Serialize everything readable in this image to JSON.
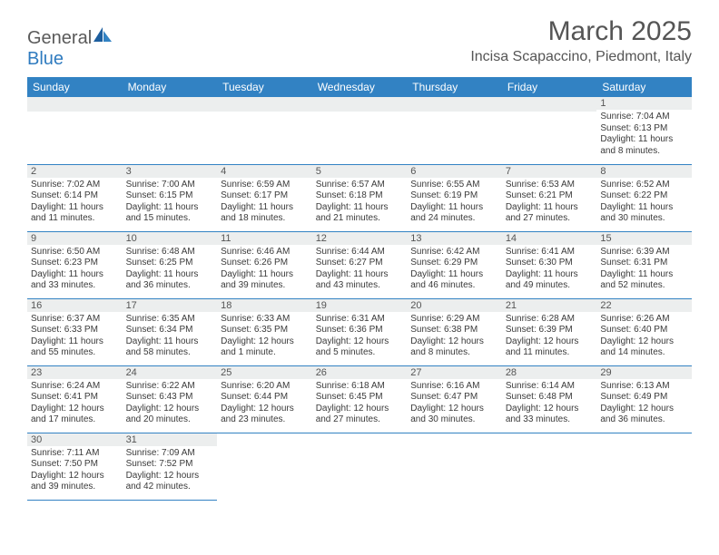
{
  "logo": {
    "text_general": "General",
    "text_blue": "Blue"
  },
  "title": "March 2025",
  "location": "Incisa Scapaccino, Piedmont, Italy",
  "day_headers": [
    "Sunday",
    "Monday",
    "Tuesday",
    "Wednesday",
    "Thursday",
    "Friday",
    "Saturday"
  ],
  "colors": {
    "header_bg": "#3282c3",
    "header_fg": "#ffffff",
    "daynum_bg": "#eceeee",
    "border": "#3282c3",
    "text": "#3a3a3a",
    "title": "#555555"
  },
  "weeks": [
    [
      null,
      null,
      null,
      null,
      null,
      null,
      {
        "n": "1",
        "sr": "Sunrise: 7:04 AM",
        "ss": "Sunset: 6:13 PM",
        "dl1": "Daylight: 11 hours",
        "dl2": "and 8 minutes."
      }
    ],
    [
      {
        "n": "2",
        "sr": "Sunrise: 7:02 AM",
        "ss": "Sunset: 6:14 PM",
        "dl1": "Daylight: 11 hours",
        "dl2": "and 11 minutes."
      },
      {
        "n": "3",
        "sr": "Sunrise: 7:00 AM",
        "ss": "Sunset: 6:15 PM",
        "dl1": "Daylight: 11 hours",
        "dl2": "and 15 minutes."
      },
      {
        "n": "4",
        "sr": "Sunrise: 6:59 AM",
        "ss": "Sunset: 6:17 PM",
        "dl1": "Daylight: 11 hours",
        "dl2": "and 18 minutes."
      },
      {
        "n": "5",
        "sr": "Sunrise: 6:57 AM",
        "ss": "Sunset: 6:18 PM",
        "dl1": "Daylight: 11 hours",
        "dl2": "and 21 minutes."
      },
      {
        "n": "6",
        "sr": "Sunrise: 6:55 AM",
        "ss": "Sunset: 6:19 PM",
        "dl1": "Daylight: 11 hours",
        "dl2": "and 24 minutes."
      },
      {
        "n": "7",
        "sr": "Sunrise: 6:53 AM",
        "ss": "Sunset: 6:21 PM",
        "dl1": "Daylight: 11 hours",
        "dl2": "and 27 minutes."
      },
      {
        "n": "8",
        "sr": "Sunrise: 6:52 AM",
        "ss": "Sunset: 6:22 PM",
        "dl1": "Daylight: 11 hours",
        "dl2": "and 30 minutes."
      }
    ],
    [
      {
        "n": "9",
        "sr": "Sunrise: 6:50 AM",
        "ss": "Sunset: 6:23 PM",
        "dl1": "Daylight: 11 hours",
        "dl2": "and 33 minutes."
      },
      {
        "n": "10",
        "sr": "Sunrise: 6:48 AM",
        "ss": "Sunset: 6:25 PM",
        "dl1": "Daylight: 11 hours",
        "dl2": "and 36 minutes."
      },
      {
        "n": "11",
        "sr": "Sunrise: 6:46 AM",
        "ss": "Sunset: 6:26 PM",
        "dl1": "Daylight: 11 hours",
        "dl2": "and 39 minutes."
      },
      {
        "n": "12",
        "sr": "Sunrise: 6:44 AM",
        "ss": "Sunset: 6:27 PM",
        "dl1": "Daylight: 11 hours",
        "dl2": "and 43 minutes."
      },
      {
        "n": "13",
        "sr": "Sunrise: 6:42 AM",
        "ss": "Sunset: 6:29 PM",
        "dl1": "Daylight: 11 hours",
        "dl2": "and 46 minutes."
      },
      {
        "n": "14",
        "sr": "Sunrise: 6:41 AM",
        "ss": "Sunset: 6:30 PM",
        "dl1": "Daylight: 11 hours",
        "dl2": "and 49 minutes."
      },
      {
        "n": "15",
        "sr": "Sunrise: 6:39 AM",
        "ss": "Sunset: 6:31 PM",
        "dl1": "Daylight: 11 hours",
        "dl2": "and 52 minutes."
      }
    ],
    [
      {
        "n": "16",
        "sr": "Sunrise: 6:37 AM",
        "ss": "Sunset: 6:33 PM",
        "dl1": "Daylight: 11 hours",
        "dl2": "and 55 minutes."
      },
      {
        "n": "17",
        "sr": "Sunrise: 6:35 AM",
        "ss": "Sunset: 6:34 PM",
        "dl1": "Daylight: 11 hours",
        "dl2": "and 58 minutes."
      },
      {
        "n": "18",
        "sr": "Sunrise: 6:33 AM",
        "ss": "Sunset: 6:35 PM",
        "dl1": "Daylight: 12 hours",
        "dl2": "and 1 minute."
      },
      {
        "n": "19",
        "sr": "Sunrise: 6:31 AM",
        "ss": "Sunset: 6:36 PM",
        "dl1": "Daylight: 12 hours",
        "dl2": "and 5 minutes."
      },
      {
        "n": "20",
        "sr": "Sunrise: 6:29 AM",
        "ss": "Sunset: 6:38 PM",
        "dl1": "Daylight: 12 hours",
        "dl2": "and 8 minutes."
      },
      {
        "n": "21",
        "sr": "Sunrise: 6:28 AM",
        "ss": "Sunset: 6:39 PM",
        "dl1": "Daylight: 12 hours",
        "dl2": "and 11 minutes."
      },
      {
        "n": "22",
        "sr": "Sunrise: 6:26 AM",
        "ss": "Sunset: 6:40 PM",
        "dl1": "Daylight: 12 hours",
        "dl2": "and 14 minutes."
      }
    ],
    [
      {
        "n": "23",
        "sr": "Sunrise: 6:24 AM",
        "ss": "Sunset: 6:41 PM",
        "dl1": "Daylight: 12 hours",
        "dl2": "and 17 minutes."
      },
      {
        "n": "24",
        "sr": "Sunrise: 6:22 AM",
        "ss": "Sunset: 6:43 PM",
        "dl1": "Daylight: 12 hours",
        "dl2": "and 20 minutes."
      },
      {
        "n": "25",
        "sr": "Sunrise: 6:20 AM",
        "ss": "Sunset: 6:44 PM",
        "dl1": "Daylight: 12 hours",
        "dl2": "and 23 minutes."
      },
      {
        "n": "26",
        "sr": "Sunrise: 6:18 AM",
        "ss": "Sunset: 6:45 PM",
        "dl1": "Daylight: 12 hours",
        "dl2": "and 27 minutes."
      },
      {
        "n": "27",
        "sr": "Sunrise: 6:16 AM",
        "ss": "Sunset: 6:47 PM",
        "dl1": "Daylight: 12 hours",
        "dl2": "and 30 minutes."
      },
      {
        "n": "28",
        "sr": "Sunrise: 6:14 AM",
        "ss": "Sunset: 6:48 PM",
        "dl1": "Daylight: 12 hours",
        "dl2": "and 33 minutes."
      },
      {
        "n": "29",
        "sr": "Sunrise: 6:13 AM",
        "ss": "Sunset: 6:49 PM",
        "dl1": "Daylight: 12 hours",
        "dl2": "and 36 minutes."
      }
    ],
    [
      {
        "n": "30",
        "sr": "Sunrise: 7:11 AM",
        "ss": "Sunset: 7:50 PM",
        "dl1": "Daylight: 12 hours",
        "dl2": "and 39 minutes."
      },
      {
        "n": "31",
        "sr": "Sunrise: 7:09 AM",
        "ss": "Sunset: 7:52 PM",
        "dl1": "Daylight: 12 hours",
        "dl2": "and 42 minutes."
      },
      null,
      null,
      null,
      null,
      null
    ]
  ]
}
